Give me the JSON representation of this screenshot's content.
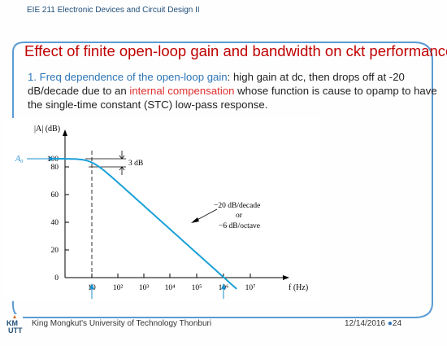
{
  "header": {
    "course": "EIE 211 Electronic Devices and Circuit Design II"
  },
  "title": "Effect of finite open-loop gain and bandwidth on ckt performance",
  "body": {
    "number": "1.",
    "term": "Freq dependence of the open-loop gain",
    "part1": ": high gain at dc, then drops off at -20 dB/decade due to an ",
    "highlight": "internal compensation",
    "part2": " whose function is cause to opamp to have the single-time constant (STC) low-pass response."
  },
  "figure": {
    "ylabel": "|A| (dB)",
    "y_ticks": [
      "0",
      "20",
      "40",
      "60",
      "80",
      "100"
    ],
    "x_ticks": [
      "10",
      "10²",
      "10³",
      "10⁴",
      "10⁵",
      "10⁶",
      "10⁷"
    ],
    "xlabel": "f (Hz)",
    "A0_label": "A₀",
    "three_db": "3 dB",
    "slope_lines": [
      "−20 dB/decade",
      "or",
      "−6 dB/octave"
    ],
    "fb_label": "f_b",
    "ft_label": "f_t"
  },
  "chart_data": {
    "type": "line",
    "xscale": "log",
    "ylabel": "|A| (dB)",
    "xlabel": "f (Hz)",
    "x": [
      1,
      10,
      100,
      1000,
      10000,
      100000,
      1000000
    ],
    "values": [
      100,
      97,
      80,
      60,
      40,
      20,
      0
    ],
    "ylim": [
      0,
      100
    ],
    "xlim": [
      1,
      10000000
    ]
  },
  "footer": {
    "logo_text": "KMUTT",
    "university": "King Mongkut's University of Technology Thonburi",
    "date": "12/14/2016",
    "separator": "●",
    "page": "24"
  },
  "colors": {
    "title": "#c00000",
    "accent": "#2e75b6",
    "curve": "#1aa0d8",
    "highlight": "#e03030"
  }
}
